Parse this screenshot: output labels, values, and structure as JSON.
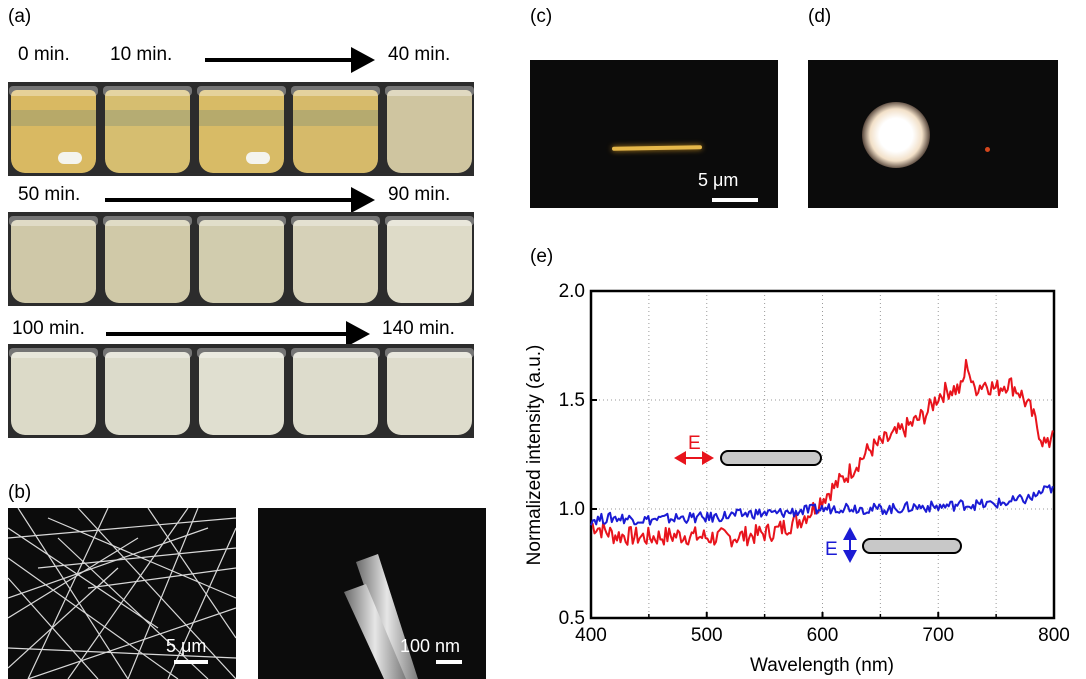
{
  "panels": {
    "a": "(a)",
    "b": "(b)",
    "c": "(c)",
    "d": "(d)",
    "e": "(e)"
  },
  "panel_a": {
    "rows": [
      {
        "start": "0 min.",
        "mid": "10 min.",
        "end": "40 min.",
        "colors": [
          "#d9b962",
          "#d6be70",
          "#d8bb66",
          "#d6ba6a",
          "#cfc5a0"
        ]
      },
      {
        "start": "50 min.",
        "end": "90 min.",
        "colors": [
          "#cfc8a8",
          "#d0c9a8",
          "#d1ccae",
          "#d6d1b8",
          "#dedbc8"
        ]
      },
      {
        "start": "100 min.",
        "end": "140 min.",
        "colors": [
          "#dcdac8",
          "#dcdbcb",
          "#e0dfd0",
          "#dddccc",
          "#dedccc"
        ]
      }
    ]
  },
  "panel_b": {
    "scale_left": "5 μm",
    "scale_right": "100 nm"
  },
  "panel_c": {
    "scale": "5 μm"
  },
  "panel_e": {
    "e_label_red": "E",
    "e_label_blue": "E"
  },
  "chart_data": {
    "type": "line",
    "xlabel": "Wavelength (nm)",
    "ylabel": "Normalized intensity (a.u.)",
    "xlim": [
      400,
      800
    ],
    "ylim": [
      0.5,
      2.0
    ],
    "xticks": [
      400,
      500,
      600,
      700,
      800
    ],
    "yticks": [
      0.5,
      1.0,
      1.5,
      2.0
    ],
    "ytick_labels": [
      "0.5",
      "1.0",
      "1.5",
      "2.0"
    ],
    "grid": true,
    "series": [
      {
        "color": "#e8141c",
        "x": [
          400,
          420,
          450,
          480,
          500,
          520,
          540,
          560,
          580,
          590,
          600,
          610,
          620,
          640,
          660,
          680,
          690,
          700,
          710,
          720,
          725,
          730,
          740,
          750,
          760,
          770,
          780,
          790,
          795,
          800
        ],
        "values": [
          0.93,
          0.88,
          0.87,
          0.88,
          0.87,
          0.87,
          0.88,
          0.9,
          0.95,
          0.99,
          1.05,
          1.1,
          1.15,
          1.27,
          1.33,
          1.4,
          1.44,
          1.52,
          1.55,
          1.55,
          1.68,
          1.55,
          1.58,
          1.55,
          1.58,
          1.54,
          1.45,
          1.32,
          1.28,
          1.4
        ]
      },
      {
        "color": "#1b1bd4",
        "x": [
          400,
          420,
          450,
          480,
          500,
          520,
          540,
          560,
          580,
          600,
          620,
          640,
          660,
          680,
          700,
          720,
          740,
          760,
          780,
          790,
          800
        ],
        "values": [
          0.95,
          0.96,
          0.95,
          0.96,
          0.96,
          0.97,
          0.98,
          0.98,
          0.99,
          1.0,
          1.01,
          1.0,
          1.0,
          1.01,
          1.01,
          1.02,
          1.02,
          1.03,
          1.05,
          1.08,
          1.1
        ]
      }
    ]
  }
}
